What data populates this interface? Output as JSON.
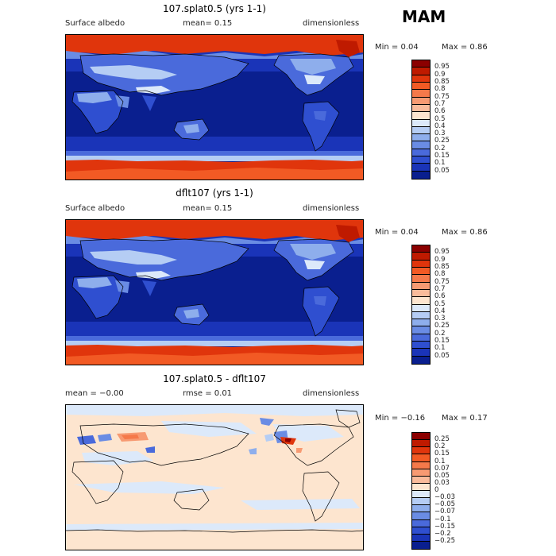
{
  "season": "MAM",
  "panels": [
    {
      "title": "107.splat0.5 (yrs 1-1)",
      "left": "Surface albedo",
      "mid": "mean=   0.15",
      "right": "dimensionless",
      "min_text": "Min =    0.04",
      "max_text": "Max =    0.86",
      "colorbar": {
        "levels": [
          "0.95",
          "0.9",
          "0.85",
          "0.8",
          "0.75",
          "0.7",
          "0.6",
          "0.5",
          "0.4",
          "0.3",
          "0.25",
          "0.2",
          "0.15",
          "0.1",
          "0.05"
        ],
        "colors": [
          "#8b0000",
          "#bf1a00",
          "#e0350c",
          "#f25a24",
          "#f5794a",
          "#f79a72",
          "#f9bb9b",
          "#fde5cf",
          "#dce9fa",
          "#b5cdf4",
          "#8eaeec",
          "#6a8ce4",
          "#4a6adb",
          "#2f4fd0",
          "#1a34b8",
          "#0a1f8f"
        ],
        "domain_min": 0.04,
        "domain_max": 0.86
      }
    },
    {
      "title": "dflt107 (yrs 1-1)",
      "left": "Surface albedo",
      "mid": "mean=   0.15",
      "right": "dimensionless",
      "min_text": "Min =    0.04",
      "max_text": "Max =    0.86",
      "colorbar": {
        "levels": [
          "0.95",
          "0.9",
          "0.85",
          "0.8",
          "0.75",
          "0.7",
          "0.6",
          "0.5",
          "0.4",
          "0.3",
          "0.25",
          "0.2",
          "0.15",
          "0.1",
          "0.05"
        ],
        "colors": [
          "#8b0000",
          "#bf1a00",
          "#e0350c",
          "#f25a24",
          "#f5794a",
          "#f79a72",
          "#f9bb9b",
          "#fde5cf",
          "#dce9fa",
          "#b5cdf4",
          "#8eaeec",
          "#6a8ce4",
          "#4a6adb",
          "#2f4fd0",
          "#1a34b8",
          "#0a1f8f"
        ],
        "domain_min": 0.04,
        "domain_max": 0.86
      }
    },
    {
      "title": "107.splat0.5 - dflt107",
      "left": "mean =   −0.00",
      "mid": "rmse =    0.01",
      "right": "dimensionless",
      "min_text": "Min =   −0.16",
      "max_text": "Max =    0.17",
      "colorbar": {
        "levels": [
          "0.25",
          "0.2",
          "0.15",
          "0.1",
          "0.07",
          "0.05",
          "0.03",
          "0",
          "−0.03",
          "−0.05",
          "−0.07",
          "−0.1",
          "−0.15",
          "−0.2",
          "−0.25"
        ],
        "colors": [
          "#8b0000",
          "#bf1a00",
          "#e0350c",
          "#f25a24",
          "#f5794a",
          "#f79a72",
          "#f9bb9b",
          "#fde5cf",
          "#dce9fa",
          "#b5cdf4",
          "#8eaeec",
          "#6a8ce4",
          "#4a6adb",
          "#2f4fd0",
          "#1a34b8",
          "#0a1f8f"
        ],
        "domain_min": -0.16,
        "domain_max": 0.17
      }
    }
  ]
}
